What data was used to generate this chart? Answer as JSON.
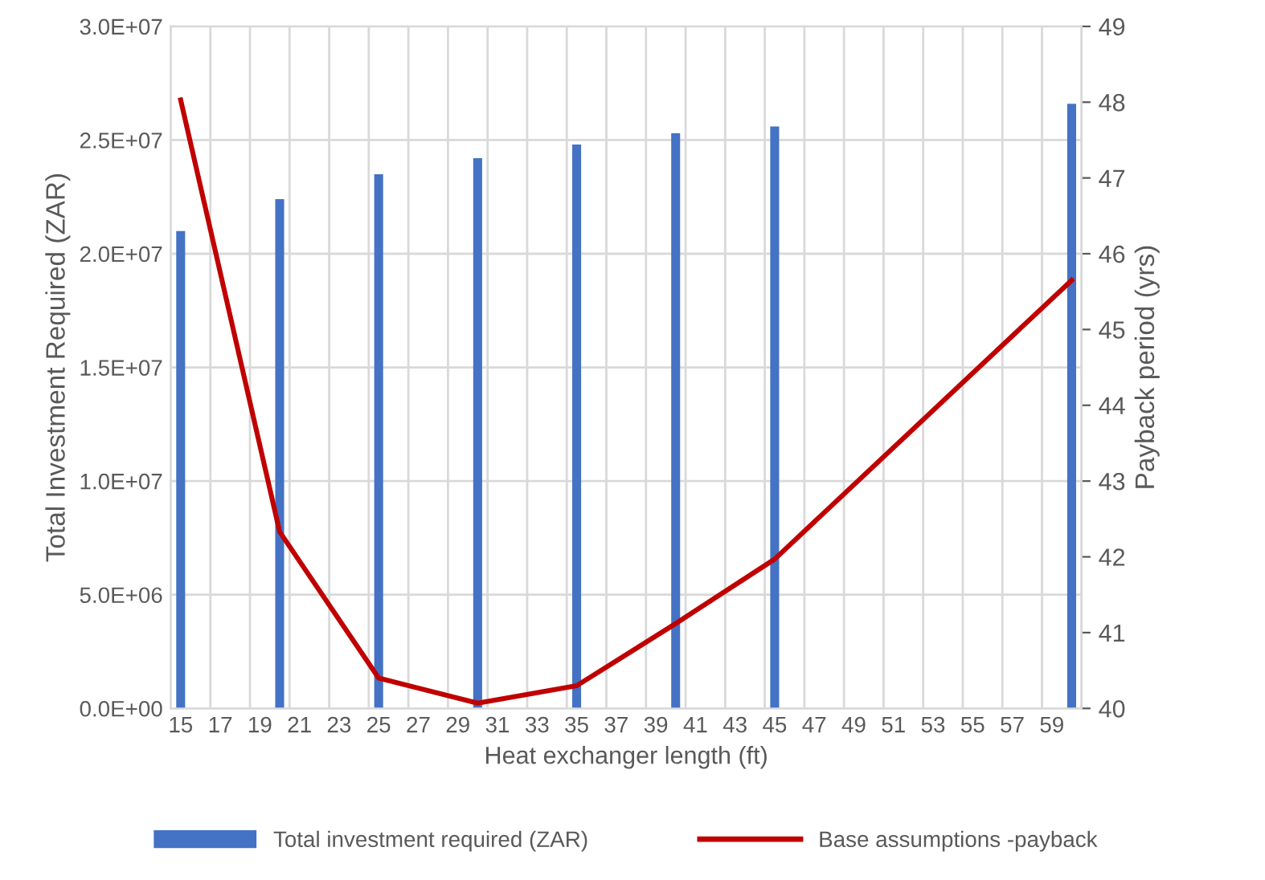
{
  "chart_data": {
    "type": "bar",
    "xlabel": "Heat exchanger length (ft)",
    "ylabel": "Total Investment Required (ZAR)",
    "y2label": "Payback period (yrs)",
    "categories": [
      "15",
      null,
      "17",
      null,
      "19",
      null,
      "21",
      null,
      "23",
      null,
      "25",
      null,
      "27",
      null,
      "29",
      null,
      "31",
      null,
      "33",
      null,
      "35",
      null,
      "37",
      null,
      "39",
      null,
      "41",
      null,
      "43",
      null,
      "45",
      null,
      "47",
      null,
      "49",
      null,
      "51",
      null,
      "53",
      null,
      "55",
      null,
      "57",
      null,
      "59",
      null
    ],
    "series": [
      {
        "name": "Total investment required (ZAR)",
        "color": "#4472c4",
        "values": [
          21000000,
          null,
          null,
          null,
          null,
          22400000,
          null,
          null,
          null,
          null,
          23500000,
          null,
          null,
          null,
          null,
          24200000,
          null,
          null,
          null,
          null,
          24800000,
          null,
          null,
          null,
          null,
          25300000,
          null,
          null,
          null,
          null,
          25600000,
          null,
          null,
          null,
          null,
          null,
          null,
          null,
          null,
          null,
          null,
          null,
          null,
          null,
          null,
          26600000
        ]
      },
      {
        "name": "Base assumptions -payback",
        "type": "line",
        "axis": "y2",
        "color": "#c00000",
        "values": [
          48.03,
          null,
          null,
          null,
          null,
          42.33,
          null,
          null,
          null,
          null,
          40.4,
          null,
          null,
          null,
          null,
          40.07,
          null,
          null,
          null,
          null,
          40.3,
          null,
          null,
          null,
          null,
          41.12,
          null,
          null,
          null,
          null,
          41.97,
          null,
          null,
          null,
          null,
          null,
          null,
          null,
          null,
          null,
          null,
          null,
          null,
          null,
          null,
          45.65
        ]
      }
    ],
    "ylim": [
      0,
      30000000
    ],
    "yticks": [
      {
        "value": 0,
        "label": "0.0E+00"
      },
      {
        "value": 5000000,
        "label": "5.0E+06"
      },
      {
        "value": 10000000,
        "label": "1.0E+07"
      },
      {
        "value": 15000000,
        "label": "1.5E+07"
      },
      {
        "value": 20000000,
        "label": "2.0E+07"
      },
      {
        "value": 25000000,
        "label": "2.5E+07"
      },
      {
        "value": 30000000,
        "label": "3.0E+07"
      }
    ],
    "y2lim": [
      40,
      49
    ],
    "y2ticks": [
      40,
      41,
      42,
      43,
      44,
      45,
      46,
      47,
      48,
      49
    ],
    "grid": true,
    "legend": "bottom",
    "marker": "none",
    "line_style": "solid"
  }
}
